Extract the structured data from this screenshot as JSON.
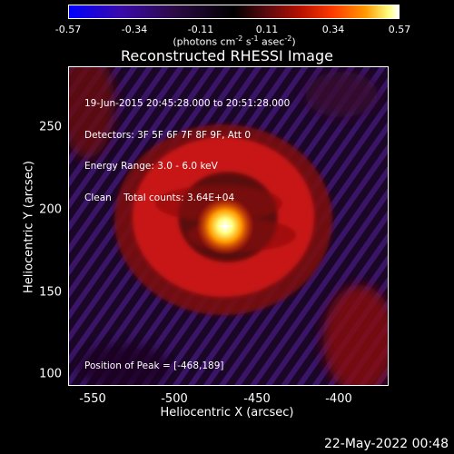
{
  "colorbar": {
    "ticks": [
      "-0.57",
      "-0.34",
      "-0.11",
      "0.11",
      "0.34",
      "0.57"
    ],
    "units_text": "(photons cm",
    "units_exp1": "-2",
    "units_mid": " s",
    "units_exp2": "-1",
    "units_mid2": " asec",
    "units_exp3": "-2",
    "units_end": ")"
  },
  "title": "Reconstructed RHESSI Image",
  "info": {
    "line1": "19-Jun-2015 20:45:28.000 to 20:51:28.000",
    "line2": "Detectors: 3F 5F 6F 7F 8F 9F, Att 0",
    "line3": "Energy Range: 3.0 - 6.0 keV",
    "line4": "Clean    Total counts: 3.64E+04"
  },
  "peak_text": "Position of Peak = [-468,189]",
  "axes": {
    "x_title": "Heliocentric X (arcsec)",
    "y_title": "Heliocentric Y (arcsec)",
    "x_ticks": [
      "-550",
      "-500",
      "-450",
      "-400"
    ],
    "y_ticks": [
      "250",
      "200",
      "150",
      "100"
    ]
  },
  "date": "22-May-2022 00:48",
  "colors": {
    "background": "#000000",
    "peak": "#ffff80",
    "ring": "#c81414",
    "negative": "#3a1466"
  }
}
